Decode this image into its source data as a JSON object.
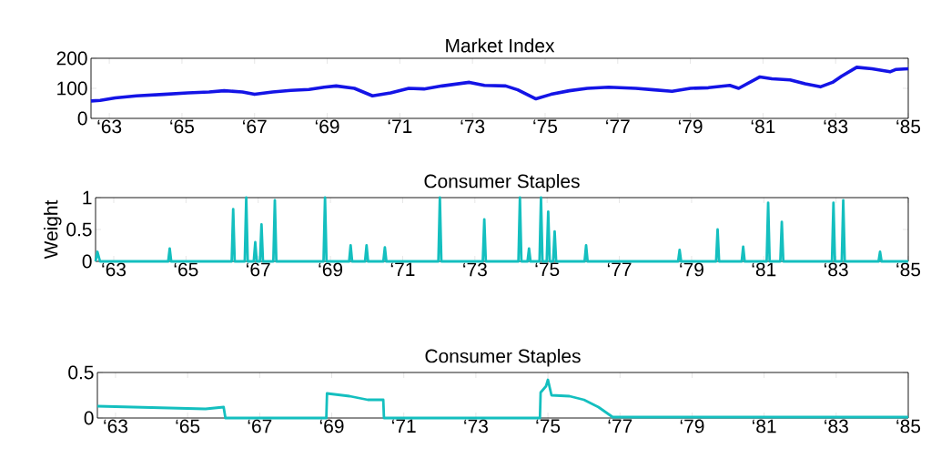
{
  "chart_data": [
    {
      "type": "line",
      "title": "Market Index",
      "x": [
        "1962-07",
        "1962-10",
        "1963-03",
        "1963-10",
        "1964-07",
        "1965-03",
        "1965-10",
        "1966-03",
        "1966-09",
        "1967-01",
        "1967-07",
        "1968-01",
        "1968-07",
        "1968-12",
        "1969-04",
        "1969-10",
        "1970-04",
        "1970-10",
        "1971-04",
        "1971-09",
        "1972-03",
        "1972-12",
        "1973-05",
        "1973-12",
        "1974-04",
        "1974-10",
        "1975-03",
        "1975-09",
        "1976-03",
        "1976-10",
        "1977-07",
        "1978-01",
        "1978-07",
        "1979-01",
        "1979-07",
        "1980-02",
        "1980-05",
        "1980-12",
        "1981-04",
        "1981-10",
        "1982-03",
        "1982-08",
        "1982-12",
        "1983-03",
        "1983-08",
        "1984-01",
        "1984-07",
        "1984-09",
        "1985-01"
      ],
      "series": [
        {
          "color": "#1414e6",
          "values": [
            58,
            60,
            68,
            75,
            80,
            85,
            88,
            92,
            88,
            80,
            88,
            93,
            96,
            104,
            108,
            100,
            75,
            85,
            100,
            98,
            108,
            120,
            110,
            108,
            95,
            65,
            80,
            92,
            100,
            104,
            100,
            95,
            90,
            100,
            102,
            110,
            100,
            138,
            132,
            128,
            115,
            105,
            120,
            140,
            170,
            165,
            155,
            163,
            165
          ]
        }
      ],
      "xlim": [
        "1962-07",
        "1985-01"
      ],
      "ylim": [
        0,
        200
      ],
      "yticks": [
        0,
        100,
        200
      ],
      "xticks": [
        {
          "value": "1963",
          "label": "‘63"
        },
        {
          "value": "1965",
          "label": "‘65"
        },
        {
          "value": "1967",
          "label": "‘67"
        },
        {
          "value": "1969",
          "label": "‘69"
        },
        {
          "value": "1971",
          "label": "‘71"
        },
        {
          "value": "1973",
          "label": "‘73"
        },
        {
          "value": "1975",
          "label": "‘75"
        },
        {
          "value": "1977",
          "label": "‘77"
        },
        {
          "value": "1979",
          "label": "‘79"
        },
        {
          "value": "1981",
          "label": "‘81"
        },
        {
          "value": "1983",
          "label": "‘83"
        },
        {
          "value": "1985",
          "label": "‘85"
        }
      ]
    },
    {
      "type": "line",
      "title": "Consumer Staples",
      "ylabel": "Weight",
      "x": [
        "1962-07-01",
        "1962-07-20",
        "1962-08-15",
        "1964-07-05",
        "1964-07-20",
        "1964-08-04",
        "1966-04-08",
        "1966-04-23",
        "1966-05-08",
        "1966-08-18",
        "1966-09-02",
        "1966-09-17",
        "1966-11-17",
        "1966-12-02",
        "1966-12-17",
        "1967-01-19",
        "1967-02-03",
        "1967-02-18",
        "1967-06-03",
        "1967-06-18",
        "1967-07-03",
        "1968-10-23",
        "1968-11-07",
        "1968-11-22",
        "1969-07-09",
        "1969-07-24",
        "1969-08-08",
        "1969-12-17",
        "1970-01-01",
        "1970-01-16",
        "1970-06-20",
        "1970-07-05",
        "1970-07-20",
        "1971-12-28",
        "1972-01-12",
        "1972-01-27",
        "1973-03-22",
        "1973-04-06",
        "1973-04-21",
        "1974-03-17",
        "1974-04-01",
        "1974-04-16",
        "1974-06-17",
        "1974-07-02",
        "1974-07-17",
        "1974-10-16",
        "1974-10-31",
        "1974-11-15",
        "1974-12-28",
        "1975-01-12",
        "1975-01-27",
        "1975-03-03",
        "1975-03-18",
        "1975-04-02",
        "1976-01-15",
        "1976-01-30",
        "1976-02-14",
        "1978-08-18",
        "1978-09-02",
        "1978-09-17",
        "1979-09-06",
        "1979-09-21",
        "1979-10-06",
        "1980-05-22",
        "1980-06-06",
        "1980-06-21",
        "1981-01-30",
        "1981-02-14",
        "1981-03-01",
        "1981-06-17",
        "1981-07-02",
        "1981-07-17",
        "1982-11-21",
        "1982-12-06",
        "1982-12-21",
        "1983-02-28",
        "1983-03-15",
        "1983-03-30",
        "1984-03-06",
        "1984-03-21",
        "1984-04-05",
        "1985-01-01"
      ],
      "series": [
        {
          "color": "#14bfbf",
          "values": [
            0,
            0.15,
            0,
            0,
            0.2,
            0,
            0,
            0.82,
            0,
            0,
            1,
            0,
            0,
            0.3,
            0,
            0,
            0.58,
            0,
            0,
            0.96,
            0,
            0,
            1,
            0,
            0,
            0.25,
            0,
            0,
            0.25,
            0,
            0,
            0.22,
            0,
            0,
            1,
            0,
            0,
            0.66,
            0,
            0,
            1,
            0,
            0,
            0.2,
            0,
            0,
            1,
            0,
            0,
            0.78,
            0,
            0,
            0.47,
            0,
            0,
            0.25,
            0,
            0,
            0.18,
            0,
            0,
            0.5,
            0,
            0,
            0.23,
            0,
            0,
            0.92,
            0,
            0,
            0.62,
            0,
            0,
            0.92,
            0,
            0,
            0.96,
            0,
            0,
            0.15,
            0,
            0
          ]
        }
      ],
      "xlim": [
        "1962-07",
        "1985-01"
      ],
      "ylim": [
        0,
        1
      ],
      "yticks": [
        0,
        0.5,
        1
      ],
      "xticks": [
        {
          "value": "1963",
          "label": "‘63"
        },
        {
          "value": "1965",
          "label": "‘65"
        },
        {
          "value": "1967",
          "label": "‘67"
        },
        {
          "value": "1969",
          "label": "‘69"
        },
        {
          "value": "1971",
          "label": "‘71"
        },
        {
          "value": "1973",
          "label": "‘73"
        },
        {
          "value": "1975",
          "label": "‘75"
        },
        {
          "value": "1977",
          "label": "‘77"
        },
        {
          "value": "1979",
          "label": "‘79"
        },
        {
          "value": "1981",
          "label": "‘81"
        },
        {
          "value": "1983",
          "label": "‘83"
        },
        {
          "value": "1985",
          "label": "‘85"
        }
      ]
    },
    {
      "type": "line",
      "title": "Consumer Staples",
      "x": [
        "1962-07-01",
        "1963-07-01",
        "1964-07-01",
        "1965-07-01",
        "1966-01-01",
        "1966-01-19",
        "1968-11-07",
        "1968-11-14",
        "1969-07-01",
        "1970-01-01",
        "1970-06-07",
        "1970-06-14",
        "1974-10-12",
        "1974-10-19",
        "1974-12-13",
        "1975-01-01",
        "1975-02-06",
        "1975-08-08",
        "1976-01-01",
        "1976-05-27",
        "1976-10-19",
        "1978-01-01",
        "1980-01-01",
        "1982-01-01",
        "1985-01-01"
      ],
      "series": [
        {
          "color": "#14bfbf",
          "values": [
            0.13,
            0.12,
            0.11,
            0.1,
            0.12,
            0,
            0,
            0.27,
            0.24,
            0.2,
            0.2,
            0,
            0,
            0.28,
            0.35,
            0.42,
            0.25,
            0.24,
            0.2,
            0.12,
            0.01,
            0.01,
            0.01,
            0.01,
            0.01
          ]
        }
      ],
      "xlim": [
        "1962-07",
        "1985-01"
      ],
      "ylim": [
        0,
        0.5
      ],
      "yticks": [
        0,
        0.5
      ],
      "xticks": [
        {
          "value": "1963",
          "label": "‘63"
        },
        {
          "value": "1965",
          "label": "‘65"
        },
        {
          "value": "1967",
          "label": "‘67"
        },
        {
          "value": "1969",
          "label": "‘69"
        },
        {
          "value": "1971",
          "label": "‘71"
        },
        {
          "value": "1973",
          "label": "‘73"
        },
        {
          "value": "1975",
          "label": "‘75"
        },
        {
          "value": "1977",
          "label": "‘77"
        },
        {
          "value": "1979",
          "label": "‘79"
        },
        {
          "value": "1981",
          "label": "‘81"
        },
        {
          "value": "1983",
          "label": "‘83"
        },
        {
          "value": "1985",
          "label": "‘85"
        }
      ]
    }
  ]
}
